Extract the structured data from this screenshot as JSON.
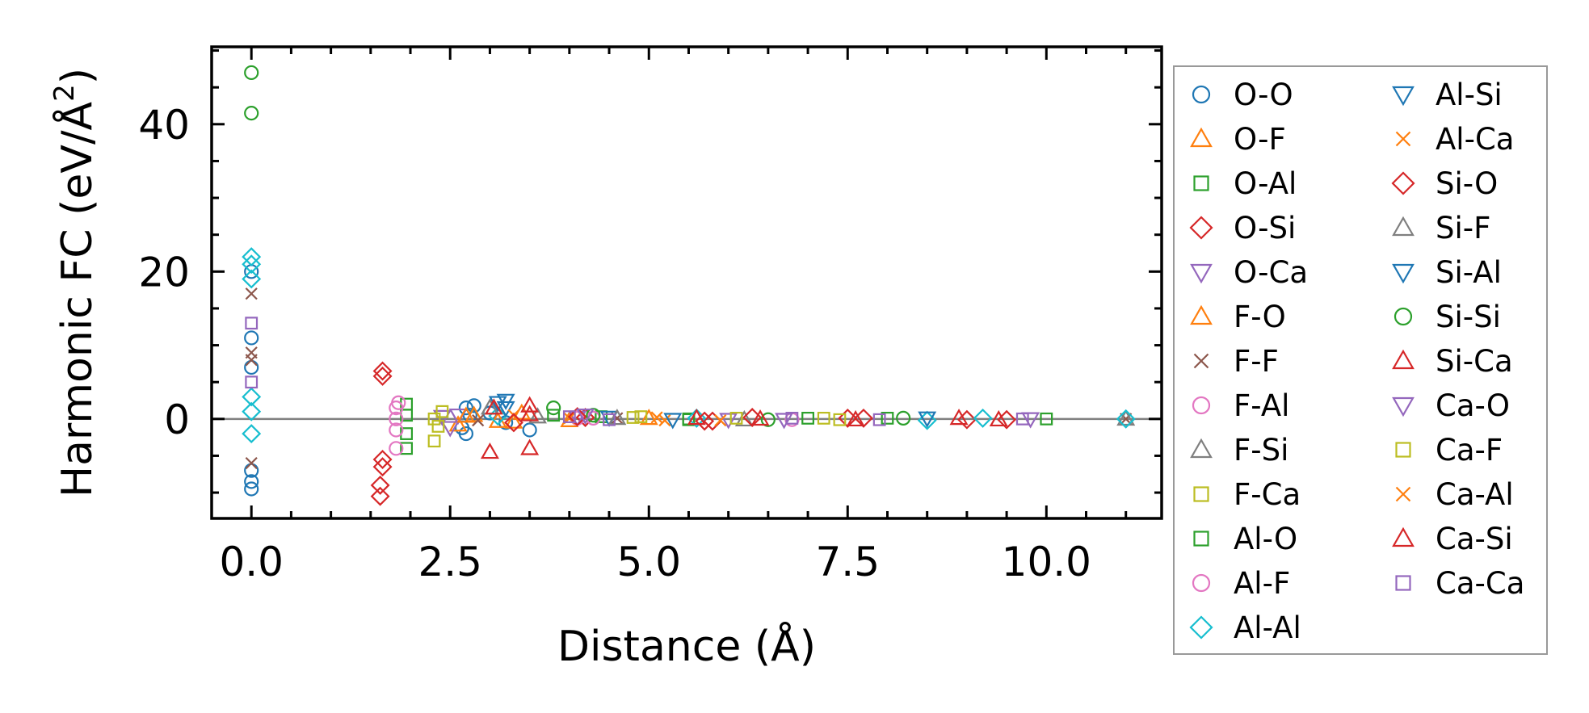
{
  "chart_data": {
    "type": "scatter",
    "xlabel": "Distance (Å)",
    "ylabel_main": "Harmonic FC (eV/Å",
    "ylabel_sup": "2",
    "ylabel_close": ")",
    "xlim": [
      -0.5,
      11.45
    ],
    "ylim": [
      -13.5,
      50.5
    ],
    "xticks": [
      {
        "value": 0.0,
        "label": "0.0"
      },
      {
        "value": 2.5,
        "label": "2.5"
      },
      {
        "value": 5.0,
        "label": "5.0"
      },
      {
        "value": 7.5,
        "label": "7.5"
      },
      {
        "value": 10.0,
        "label": "10.0"
      }
    ],
    "yticks": [
      {
        "value": 0,
        "label": "0"
      },
      {
        "value": 20,
        "label": "20"
      },
      {
        "value": 40,
        "label": "40"
      }
    ],
    "x_minor_step": 0.5,
    "y_minor_step": 5,
    "zero_line": true,
    "legend_position": "outside-right",
    "legend_columns": 2,
    "series": [
      {
        "name": "O-O",
        "marker": "circle",
        "color": "#1f77b4",
        "points": [
          [
            0,
            -7
          ],
          [
            0,
            -9.5
          ],
          [
            0,
            -8.5
          ],
          [
            0,
            11
          ],
          [
            0,
            20
          ],
          [
            0,
            7
          ],
          [
            2.7,
            1.5
          ],
          [
            2.7,
            -2
          ],
          [
            2.75,
            0.5
          ],
          [
            2.8,
            1.8
          ],
          [
            2.65,
            -1.2
          ],
          [
            3.0,
            0.8
          ],
          [
            3.2,
            -0.5
          ],
          [
            3.5,
            -1.5
          ]
        ]
      },
      {
        "name": "O-F",
        "marker": "triangle-up",
        "color": "#ff7f0e",
        "points": [
          [
            2.6,
            -0.8
          ],
          [
            2.8,
            0.5
          ],
          [
            3.1,
            -0.3
          ],
          [
            3.4,
            0.8
          ],
          [
            4.0,
            -0.2
          ]
        ]
      },
      {
        "name": "O-Al",
        "marker": "square",
        "color": "#2ca02c",
        "points": [
          [
            1.95,
            -4
          ],
          [
            1.95,
            -2
          ],
          [
            1.95,
            0.5
          ],
          [
            1.95,
            2
          ],
          [
            4.4,
            0.3
          ],
          [
            5.5,
            -0.1
          ],
          [
            7.0,
            0.1
          ]
        ]
      },
      {
        "name": "O-Si",
        "marker": "diamond",
        "color": "#d62728",
        "points": [
          [
            1.62,
            -10.5
          ],
          [
            1.62,
            -9
          ],
          [
            1.65,
            -6.5
          ],
          [
            1.65,
            -5.5
          ],
          [
            1.65,
            5.8
          ],
          [
            1.65,
            6.5
          ],
          [
            4.2,
            0.2
          ],
          [
            5.8,
            -0.3
          ],
          [
            7.5,
            0.1
          ],
          [
            9.0,
            -0.1
          ]
        ]
      },
      {
        "name": "O-Ca",
        "marker": "triangle-down",
        "color": "#9467bd",
        "points": [
          [
            2.4,
            0.3
          ],
          [
            2.5,
            -1.2
          ],
          [
            2.6,
            0.5
          ],
          [
            4.1,
            0.2
          ],
          [
            6.0,
            -0.1
          ]
        ]
      },
      {
        "name": "F-O",
        "marker": "triangle-up",
        "color": "#ff7f0e",
        "points": [
          [
            2.7,
            0.4
          ],
          [
            3.3,
            -0.4
          ],
          [
            5.0,
            0.1
          ]
        ]
      },
      {
        "name": "F-F",
        "marker": "x",
        "color": "#8c564b",
        "points": [
          [
            0,
            -6
          ],
          [
            0,
            17
          ],
          [
            0,
            9
          ],
          [
            0,
            8
          ],
          [
            2.85,
            -0.2
          ],
          [
            4.6,
            0.1
          ],
          [
            11.0,
            0
          ]
        ]
      },
      {
        "name": "F-Al",
        "marker": "circle",
        "color": "#e377c2",
        "points": [
          [
            1.82,
            1.5
          ],
          [
            1.82,
            0
          ],
          [
            1.82,
            -1.5
          ],
          [
            1.82,
            -4
          ],
          [
            1.85,
            2.2
          ],
          [
            4.3,
            0.1
          ]
        ]
      },
      {
        "name": "F-Si",
        "marker": "triangle-up",
        "color": "#7f7f7f",
        "points": [
          [
            3.6,
            0.3
          ],
          [
            6.2,
            -0.1
          ],
          [
            11.0,
            0
          ]
        ]
      },
      {
        "name": "F-Ca",
        "marker": "square",
        "color": "#bcbd22",
        "points": [
          [
            2.3,
            -3
          ],
          [
            2.3,
            0
          ],
          [
            2.35,
            -1
          ],
          [
            2.4,
            1
          ],
          [
            4.8,
            0.2
          ],
          [
            7.2,
            0.1
          ]
        ]
      },
      {
        "name": "Al-O",
        "marker": "square",
        "color": "#2ca02c",
        "points": [
          [
            3.8,
            0.5
          ],
          [
            5.5,
            0
          ],
          [
            8.0,
            0.1
          ],
          [
            10.0,
            0
          ]
        ]
      },
      {
        "name": "Al-F",
        "marker": "circle",
        "color": "#e377c2",
        "points": [
          [
            4.1,
            0.1
          ],
          [
            6.8,
            -0.1
          ]
        ]
      },
      {
        "name": "Al-Al",
        "marker": "diamond",
        "color": "#17becf",
        "points": [
          [
            0,
            22
          ],
          [
            0,
            -2
          ],
          [
            0,
            1
          ],
          [
            0,
            3
          ],
          [
            0,
            19
          ],
          [
            0,
            21
          ],
          [
            3.1,
            0.4
          ],
          [
            5.6,
            0.1
          ],
          [
            8.5,
            -0.2
          ],
          [
            9.2,
            0.1
          ],
          [
            11.0,
            0
          ]
        ]
      },
      {
        "name": "Al-Si",
        "marker": "triangle-down",
        "color": "#1f77b4",
        "points": [
          [
            3.1,
            2.2
          ],
          [
            3.2,
            1.5
          ],
          [
            4.5,
            0.2
          ]
        ]
      },
      {
        "name": "Al-Ca",
        "marker": "x",
        "color": "#ff7f0e",
        "points": [
          [
            3.3,
            0.5
          ],
          [
            4.0,
            0.1
          ],
          [
            5.2,
            -0.2
          ]
        ]
      },
      {
        "name": "Si-O",
        "marker": "diamond",
        "color": "#d62728",
        "points": [
          [
            3.3,
            -0.5
          ],
          [
            4.1,
            0.3
          ],
          [
            5.7,
            -0.3
          ],
          [
            6.3,
            0.2
          ],
          [
            7.7,
            0.1
          ],
          [
            9.5,
            -0.1
          ]
        ]
      },
      {
        "name": "Si-F",
        "marker": "triangle-up",
        "color": "#7f7f7f",
        "points": [
          [
            3.0,
            1.5
          ],
          [
            4.6,
            0.1
          ]
        ]
      },
      {
        "name": "Si-Al",
        "marker": "triangle-down",
        "color": "#1f77b4",
        "points": [
          [
            3.2,
            2.5
          ],
          [
            5.3,
            -0.1
          ],
          [
            8.5,
            0.1
          ]
        ]
      },
      {
        "name": "Si-Si",
        "marker": "circle",
        "color": "#2ca02c",
        "points": [
          [
            0,
            47
          ],
          [
            0,
            41.5
          ],
          [
            3.8,
            1.5
          ],
          [
            4.3,
            0.5
          ],
          [
            6.5,
            -0.1
          ],
          [
            8.2,
            0.1
          ]
        ]
      },
      {
        "name": "Si-Ca",
        "marker": "triangle-up",
        "color": "#d62728",
        "points": [
          [
            3.0,
            -4.5
          ],
          [
            3.5,
            -4
          ],
          [
            3.5,
            1.8
          ],
          [
            3.05,
            1.5
          ],
          [
            6.4,
            0
          ],
          [
            8.9,
            0.1
          ],
          [
            9.4,
            -0.1
          ]
        ]
      },
      {
        "name": "Ca-O",
        "marker": "triangle-down",
        "color": "#9467bd",
        "points": [
          [
            4.2,
            0.5
          ],
          [
            6.7,
            -0.1
          ],
          [
            9.8,
            0
          ]
        ]
      },
      {
        "name": "Ca-F",
        "marker": "square",
        "color": "#bcbd22",
        "points": [
          [
            4.9,
            0.3
          ],
          [
            6.1,
            0.1
          ],
          [
            7.4,
            -0.1
          ]
        ]
      },
      {
        "name": "Ca-Al",
        "marker": "x",
        "color": "#ff7f0e",
        "points": [
          [
            5.1,
            0.2
          ],
          [
            5.9,
            -0.2
          ]
        ]
      },
      {
        "name": "Ca-Si",
        "marker": "triangle-up",
        "color": "#d62728",
        "points": [
          [
            3.5,
            0.6
          ],
          [
            5.6,
            0.1
          ],
          [
            7.6,
            -0.1
          ]
        ]
      },
      {
        "name": "Ca-Ca",
        "marker": "square",
        "color": "#9467bd",
        "points": [
          [
            0,
            5
          ],
          [
            0,
            13
          ],
          [
            4.0,
            0.3
          ],
          [
            4.5,
            -0.1
          ],
          [
            6.8,
            0.1
          ],
          [
            7.9,
            -0.1
          ],
          [
            9.7,
            0
          ]
        ]
      }
    ]
  }
}
